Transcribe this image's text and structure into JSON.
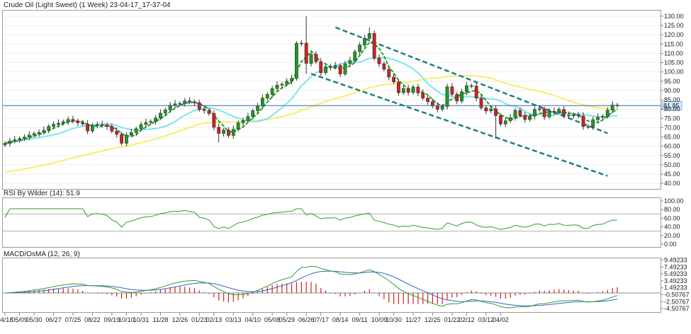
{
  "chart_data": [
    {
      "type": "candlestick",
      "title": "Crude Oil (Light Sweet) (1 Week) 23-04-17_17-37-04",
      "y_ticks": [
        40,
        45,
        50,
        55,
        60,
        65,
        70,
        75,
        80,
        85,
        90,
        95,
        100,
        105,
        110,
        115,
        120,
        125,
        130
      ],
      "y_tick_labels": [
        "40.00",
        "45.00",
        "50.00",
        "55.00",
        "60.00",
        "65.00",
        "70.00",
        "75.00",
        "80.00",
        "85.00",
        "90.00",
        "95.00",
        "100.00",
        "105.00",
        "110.00",
        "115.00",
        "120.00",
        "125.00",
        "130.00"
      ],
      "ylim": [
        37,
        133
      ],
      "last_price": 81.85,
      "last_price_label": "81.85",
      "x_labels": [
        "04/18",
        "05/09",
        "05/30",
        "06/27",
        "07/25",
        "08/22",
        "09/19",
        "10/10",
        "10/31",
        "11/28",
        "12/26",
        "01/23",
        "02/13",
        "03/13",
        "04/10",
        "05/08",
        "05/29",
        "06/26",
        "07/17",
        "08/14",
        "09/11",
        "10/09",
        "10/30",
        "11/27",
        "12/25",
        "01/22",
        "02/12",
        "03/12",
        "04/02"
      ],
      "x_label_weeks": [
        0,
        3,
        6,
        10,
        14,
        18,
        22,
        25,
        28,
        32,
        36,
        40,
        43,
        47,
        51,
        55,
        58,
        62,
        65,
        69,
        73,
        77,
        80,
        84,
        88,
        92,
        95,
        99,
        102
      ],
      "close": [
        61.5,
        62.8,
        63.5,
        64.1,
        64.9,
        66.0,
        66.8,
        67.4,
        68.6,
        70.7,
        71.8,
        72.4,
        73.2,
        74.4,
        73.6,
        72.6,
        72.0,
        68.2,
        71.3,
        71.6,
        71.4,
        70.6,
        68.1,
        66.4,
        61.6,
        66.0,
        67.4,
        69.4,
        71.7,
        72.8,
        73.3,
        75.2,
        77.8,
        79.5,
        82.1,
        82.8,
        83.0,
        84.4,
        83.9,
        83.4,
        79.8,
        79.2,
        77.6,
        70.2,
        66.9,
        68.7,
        65.8,
        69.1,
        72.6,
        73.8,
        76.0,
        79.1,
        81.7,
        85.9,
        87.9,
        91.0,
        92.9,
        93.4,
        95.0,
        96.5,
        115.4,
        115.5,
        104.6,
        109.5,
        105.5,
        99.6,
        102.8,
        102.5,
        103.4,
        98.9,
        104.4,
        106.1,
        110.9,
        114.5,
        118.0,
        120.7,
        107.4,
        104.4,
        101.4,
        97.2,
        94.6,
        88.8,
        91.1,
        89.0,
        91.9,
        88.7,
        85.9,
        84.0,
        81.7,
        79.9,
        81.4,
        92.0,
        88.0,
        84.3,
        89.3,
        92.6,
        92.4,
        85.9,
        80.7,
        79.0,
        80.1,
        76.5,
        72.0,
        73.7,
        75.4,
        79.3,
        76.5,
        74.4,
        76.2,
        79.8,
        80.1,
        75.8,
        78.8,
        78.3,
        79.8,
        76.7,
        76.4,
        76.9,
        76.3,
        70.6,
        70.5,
        74.3,
        75.6,
        76.0,
        79.4,
        82.2,
        81.9
      ],
      "overlays": [
        {
          "name": "short MA",
          "color": "#2e9e2e",
          "dashed": true
        },
        {
          "name": "medium MA",
          "color": "#7fe3f0",
          "dashed": false
        },
        {
          "name": "long MA",
          "color": "#f5ef6a",
          "dashed": false
        }
      ],
      "channel": {
        "upper": [
          [
            68,
            124
          ],
          [
            124,
            67
          ]
        ],
        "lower": [
          [
            63,
            99
          ],
          [
            124,
            44
          ]
        ],
        "color": "#1e8080"
      }
    },
    {
      "type": "line",
      "title": "RSI By Wilder (14): 51.9",
      "y_ticks": [
        0,
        20,
        40,
        60,
        80,
        100
      ],
      "y_tick_labels": [
        "0.00",
        "20.00",
        "40.00",
        "60.00",
        "80.00",
        "100.00"
      ],
      "reference_lines": [
        30,
        70
      ],
      "ylim": [
        -5,
        105
      ],
      "last_value": 51.9
    },
    {
      "type": "line+bar",
      "title": "MACD/OsMA (12, 26, 9)",
      "y_ticks": [
        -4.50767,
        -2.50767,
        -0.50767,
        1.49233,
        3.49233,
        5.49233,
        7.49233,
        9.49233
      ],
      "y_tick_labels": [
        "-4.50767",
        "-2.50767",
        "-0.50767",
        "1.49233",
        "3.49233",
        "5.49233",
        "7.49233",
        "9.49233"
      ],
      "ylim": [
        -5.3,
        9.8
      ]
    }
  ]
}
